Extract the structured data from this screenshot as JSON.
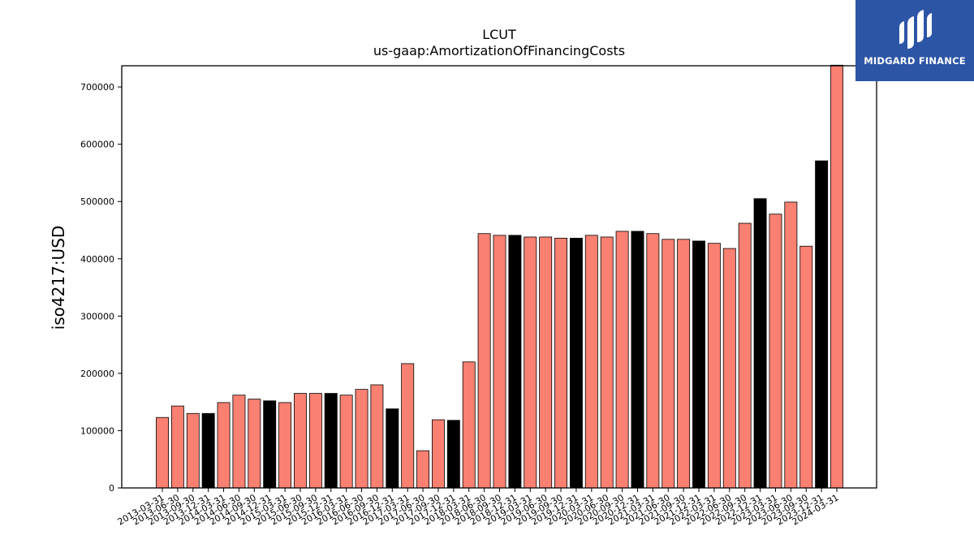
{
  "chart_data": {
    "type": "bar",
    "title": "LCUT",
    "subtitle": "us-gaap:AmortizationOfFinancingCosts",
    "xlabel": "",
    "ylabel": "iso4217:USD",
    "ylim": [
      0,
      737000
    ],
    "yticks": [
      0,
      100000,
      200000,
      300000,
      400000,
      500000,
      600000,
      700000
    ],
    "grid": false,
    "colors": {
      "default": "#fa8072",
      "highlight": "#000000",
      "edge": "#000000"
    },
    "categories": [
      "2013-03-31",
      "2013-06-30",
      "2013-09-30",
      "2013-12-31",
      "2014-03-31",
      "2014-06-30",
      "2014-09-30",
      "2014-12-31",
      "2015-03-31",
      "2015-06-30",
      "2015-09-30",
      "2015-12-31",
      "2016-03-31",
      "2016-06-30",
      "2016-09-30",
      "2016-12-31",
      "2017-03-31",
      "2017-06-30",
      "2017-09-30",
      "2017-12-31",
      "2018-03-31",
      "2018-06-30",
      "2018-09-30",
      "2018-12-31",
      "2019-03-31",
      "2019-06-30",
      "2019-09-30",
      "2019-12-31",
      "2020-03-31",
      "2020-06-30",
      "2020-09-30",
      "2020-12-31",
      "2021-03-31",
      "2021-06-30",
      "2021-09-30",
      "2021-12-31",
      "2022-03-31",
      "2022-06-30",
      "2022-09-30",
      "2022-12-31",
      "2023-03-31",
      "2023-06-30",
      "2023-09-30",
      "2023-12-31",
      "2024-03-31"
    ],
    "values": [
      123000,
      143000,
      130000,
      130000,
      149000,
      162000,
      155000,
      152000,
      149000,
      165000,
      165000,
      165000,
      162000,
      172000,
      180000,
      138000,
      217000,
      65000,
      119000,
      118000,
      220000,
      444000,
      441000,
      441000,
      438000,
      438000,
      436000,
      436000,
      441000,
      438000,
      448000,
      448000,
      444000,
      434000,
      434000,
      431000,
      427000,
      418000,
      462000,
      505000,
      478000,
      499000,
      422000,
      571000,
      738000
    ],
    "highlight": [
      false,
      false,
      false,
      true,
      false,
      false,
      false,
      true,
      false,
      false,
      false,
      true,
      false,
      false,
      false,
      true,
      false,
      false,
      false,
      true,
      false,
      false,
      false,
      true,
      false,
      false,
      false,
      true,
      false,
      false,
      false,
      true,
      false,
      false,
      false,
      true,
      false,
      false,
      false,
      true,
      false,
      false,
      false,
      true,
      false
    ]
  },
  "logo": {
    "text": "MIDGARD FINANCE",
    "bg": "#2c55a6"
  }
}
